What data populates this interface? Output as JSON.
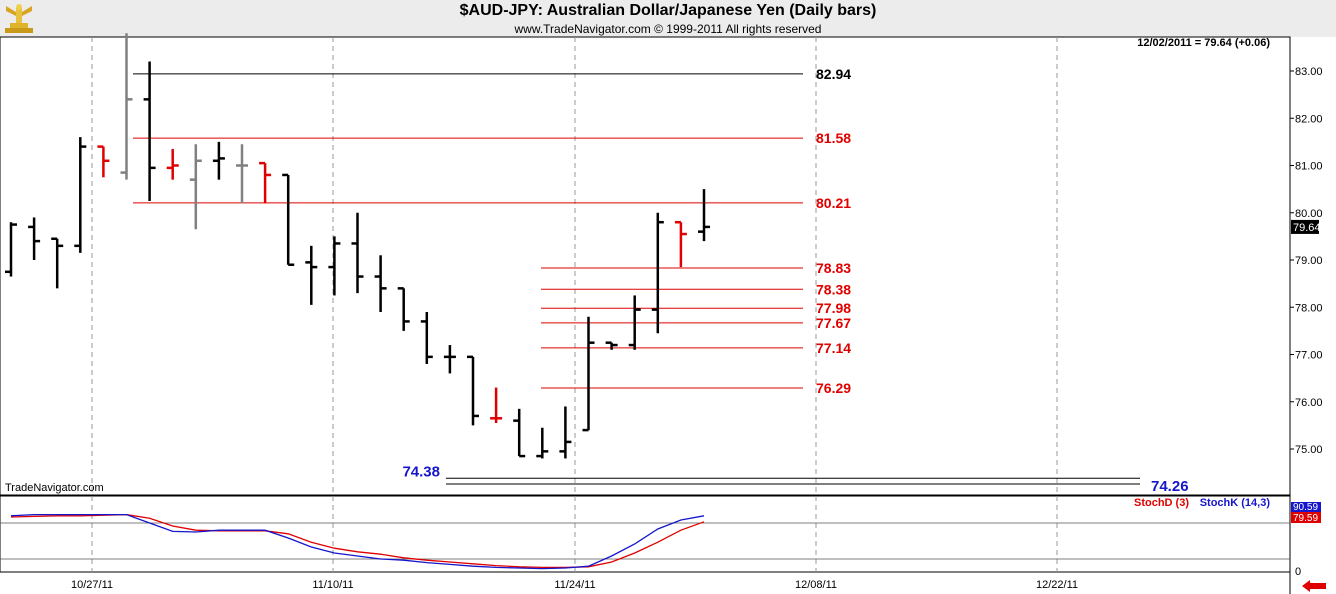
{
  "header": {
    "title": "$AUD-JPY:  Australian Dollar/Japanese Yen  (Daily bars)",
    "subtitle": "www.TradeNavigator.com © 1999-2011 All rights reserved",
    "logo_icon": "gold-trophy-icon"
  },
  "watermark": "TradeNavigator.com",
  "chart_data": {
    "type": "bar",
    "last_value_text": "12/02/2011 = 79.64 (+0.06)",
    "last_price_label": "79.64",
    "price_axis": {
      "ticks": [
        75,
        76,
        77,
        78,
        79,
        80,
        81,
        82,
        83
      ],
      "tick_labels": [
        "75.00",
        "76.00",
        "77.00",
        "78.00",
        "79.00",
        "80.00",
        "81.00",
        "82.00",
        "83.00"
      ],
      "range": [
        74.05,
        83.8
      ]
    },
    "date_labels": [
      "10/27/11",
      "11/10/11",
      "11/24/11",
      "12/08/11",
      "12/22/11"
    ],
    "colors": {
      "black": "#000000",
      "gray": "#808080",
      "red": "#e00000",
      "blue": "#1515cc"
    },
    "bars": [
      {
        "o": 78.75,
        "h": 79.8,
        "l": 78.65,
        "c": 79.75,
        "color": "black"
      },
      {
        "o": 79.7,
        "h": 79.9,
        "l": 79.0,
        "c": 79.4,
        "color": "black"
      },
      {
        "o": 79.45,
        "h": 79.45,
        "l": 78.4,
        "c": 79.3,
        "color": "black"
      },
      {
        "o": 79.3,
        "h": 81.6,
        "l": 79.15,
        "c": 81.4,
        "color": "black"
      },
      {
        "o": 81.4,
        "h": 81.4,
        "l": 80.75,
        "c": 81.1,
        "color": "red"
      },
      {
        "o": 80.85,
        "h": 83.8,
        "l": 80.7,
        "c": 82.4,
        "color": "gray"
      },
      {
        "o": 82.4,
        "h": 83.2,
        "l": 80.25,
        "c": 80.95,
        "color": "black"
      },
      {
        "o": 80.95,
        "h": 81.35,
        "l": 80.7,
        "c": 81.0,
        "color": "red"
      },
      {
        "o": 80.7,
        "h": 81.45,
        "l": 79.65,
        "c": 81.1,
        "color": "gray"
      },
      {
        "o": 81.1,
        "h": 81.5,
        "l": 80.7,
        "c": 81.15,
        "color": "black"
      },
      {
        "o": 81.0,
        "h": 81.45,
        "l": 80.2,
        "c": 81.0,
        "color": "gray"
      },
      {
        "o": 81.05,
        "h": 81.05,
        "l": 80.2,
        "c": 80.8,
        "color": "red"
      },
      {
        "o": 80.8,
        "h": 80.8,
        "l": 78.9,
        "c": 78.9,
        "color": "black"
      },
      {
        "o": 78.95,
        "h": 79.3,
        "l": 78.05,
        "c": 78.85,
        "color": "black"
      },
      {
        "o": 78.85,
        "h": 79.5,
        "l": 78.25,
        "c": 79.35,
        "color": "black"
      },
      {
        "o": 79.35,
        "h": 80.0,
        "l": 78.3,
        "c": 78.65,
        "color": "black"
      },
      {
        "o": 78.65,
        "h": 79.1,
        "l": 77.9,
        "c": 78.4,
        "color": "black"
      },
      {
        "o": 78.4,
        "h": 78.4,
        "l": 77.5,
        "c": 77.7,
        "color": "black"
      },
      {
        "o": 77.7,
        "h": 77.9,
        "l": 76.8,
        "c": 76.95,
        "color": "black"
      },
      {
        "o": 76.95,
        "h": 77.2,
        "l": 76.6,
        "c": 76.95,
        "color": "black"
      },
      {
        "o": 76.95,
        "h": 76.95,
        "l": 75.5,
        "c": 75.7,
        "color": "black"
      },
      {
        "o": 75.65,
        "h": 76.3,
        "l": 75.55,
        "c": 75.65,
        "color": "red"
      },
      {
        "o": 75.6,
        "h": 75.85,
        "l": 74.85,
        "c": 74.85,
        "color": "black"
      },
      {
        "o": 74.85,
        "h": 75.45,
        "l": 74.8,
        "c": 74.95,
        "color": "black"
      },
      {
        "o": 74.95,
        "h": 75.9,
        "l": 74.8,
        "c": 75.15,
        "color": "black"
      },
      {
        "o": 75.4,
        "h": 77.8,
        "l": 75.4,
        "c": 77.25,
        "color": "black"
      },
      {
        "o": 77.25,
        "h": 77.25,
        "l": 77.1,
        "c": 77.2,
        "color": "black"
      },
      {
        "o": 77.2,
        "h": 78.25,
        "l": 77.1,
        "c": 77.95,
        "color": "black"
      },
      {
        "o": 77.95,
        "h": 80.0,
        "l": 77.45,
        "c": 79.8,
        "color": "black"
      },
      {
        "o": 79.8,
        "h": 79.8,
        "l": 78.85,
        "c": 79.55,
        "color": "red"
      },
      {
        "o": 79.6,
        "h": 80.5,
        "l": 79.4,
        "c": 79.7,
        "color": "black"
      }
    ],
    "levels": [
      {
        "value": 82.94,
        "label": "82.94",
        "color": "black"
      },
      {
        "value": 81.58,
        "label": "81.58",
        "color": "red"
      },
      {
        "value": 80.21,
        "label": "80.21",
        "color": "red"
      },
      {
        "value": 78.83,
        "label": "78.83",
        "color": "red"
      },
      {
        "value": 78.38,
        "label": "78.38",
        "color": "red"
      },
      {
        "value": 77.98,
        "label": "77.98",
        "color": "red"
      },
      {
        "value": 77.67,
        "label": "77.67",
        "color": "red"
      },
      {
        "value": 77.14,
        "label": "77.14",
        "color": "red"
      },
      {
        "value": 76.29,
        "label": "76.29",
        "color": "red"
      }
    ],
    "support_lines": [
      {
        "value": 74.38,
        "label": "74.38",
        "label_side": "left"
      },
      {
        "value": 74.26,
        "label": "74.26",
        "label_side": "right"
      }
    ],
    "stochastic": {
      "legend_d": "StochD (3)",
      "legend_k": "StochK (14,3)",
      "k_label": "90.59",
      "d_label": "79.59",
      "zero_label": "0",
      "range": [
        0,
        100
      ],
      "k_values": [
        92,
        94,
        94,
        94,
        94,
        94,
        80,
        66,
        65,
        68,
        68,
        68,
        55,
        40,
        30,
        25,
        20,
        18,
        14,
        11,
        8,
        6,
        5,
        4,
        5,
        8,
        25,
        45,
        70,
        85,
        92
      ],
      "d_values": [
        90,
        91,
        92,
        92,
        93,
        94,
        88,
        75,
        68,
        67,
        67,
        67,
        62,
        48,
        38,
        32,
        28,
        22,
        18,
        15,
        12,
        9,
        7,
        6,
        6,
        7,
        15,
        30,
        48,
        68,
        82
      ]
    }
  }
}
